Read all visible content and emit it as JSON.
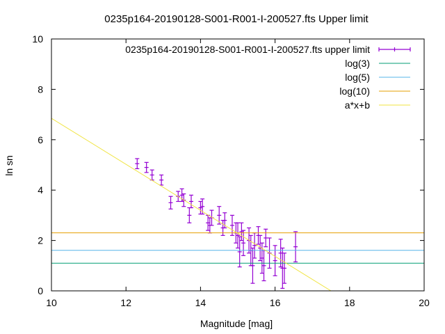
{
  "chart_data": {
    "type": "scatter",
    "title": "0235p164-20190128-S001-R001-I-200527.fts Upper limit",
    "xlabel": "Magnitude [mag]",
    "ylabel": "ln sn",
    "xlim": [
      10,
      20
    ],
    "ylim": [
      0,
      10
    ],
    "xticks": [
      "10",
      "12",
      "14",
      "16",
      "18",
      "20"
    ],
    "yticks": [
      "0",
      "2",
      "4",
      "6",
      "8",
      "10"
    ],
    "grid": false,
    "legend_position": "top-right",
    "series": [
      {
        "name": "0235p164-20190128-S001-R001-I-200527.fts upper limit",
        "kind": "errorbars",
        "color": "#9400d3",
        "points": [
          {
            "x": 12.3,
            "y": 5.05,
            "err": 0.2
          },
          {
            "x": 12.55,
            "y": 4.9,
            "err": 0.2
          },
          {
            "x": 12.7,
            "y": 4.6,
            "err": 0.2
          },
          {
            "x": 12.95,
            "y": 4.4,
            "err": 0.2
          },
          {
            "x": 13.2,
            "y": 3.5,
            "err": 0.25
          },
          {
            "x": 13.4,
            "y": 3.75,
            "err": 0.2
          },
          {
            "x": 13.5,
            "y": 3.8,
            "err": 0.25
          },
          {
            "x": 13.55,
            "y": 3.6,
            "err": 0.25
          },
          {
            "x": 13.7,
            "y": 3.0,
            "err": 0.3
          },
          {
            "x": 13.75,
            "y": 3.55,
            "err": 0.25
          },
          {
            "x": 14.0,
            "y": 3.3,
            "err": 0.25
          },
          {
            "x": 14.05,
            "y": 3.35,
            "err": 0.3
          },
          {
            "x": 14.2,
            "y": 2.7,
            "err": 0.3
          },
          {
            "x": 14.25,
            "y": 2.6,
            "err": 0.3
          },
          {
            "x": 14.3,
            "y": 2.9,
            "err": 0.3
          },
          {
            "x": 14.5,
            "y": 3.0,
            "err": 0.35
          },
          {
            "x": 14.6,
            "y": 2.5,
            "err": 0.3
          },
          {
            "x": 14.65,
            "y": 2.8,
            "err": 0.3
          },
          {
            "x": 14.85,
            "y": 2.6,
            "err": 0.4
          },
          {
            "x": 14.95,
            "y": 2.3,
            "err": 0.4
          },
          {
            "x": 15.0,
            "y": 2.2,
            "err": 0.5
          },
          {
            "x": 15.05,
            "y": 1.55,
            "err": 0.6
          },
          {
            "x": 15.1,
            "y": 2.35,
            "err": 0.35
          },
          {
            "x": 15.15,
            "y": 1.9,
            "err": 0.5
          },
          {
            "x": 15.3,
            "y": 2.0,
            "err": 0.5
          },
          {
            "x": 15.35,
            "y": 1.6,
            "err": 0.6
          },
          {
            "x": 15.4,
            "y": 1.0,
            "err": 0.7
          },
          {
            "x": 15.45,
            "y": 1.8,
            "err": 0.5
          },
          {
            "x": 15.55,
            "y": 2.2,
            "err": 0.35
          },
          {
            "x": 15.6,
            "y": 1.7,
            "err": 0.5
          },
          {
            "x": 15.65,
            "y": 1.3,
            "err": 0.6
          },
          {
            "x": 15.7,
            "y": 1.0,
            "err": 0.6
          },
          {
            "x": 15.75,
            "y": 2.1,
            "err": 0.35
          },
          {
            "x": 15.85,
            "y": 1.5,
            "err": 0.6
          },
          {
            "x": 16.0,
            "y": 1.2,
            "err": 0.6
          },
          {
            "x": 16.15,
            "y": 1.5,
            "err": 0.55
          },
          {
            "x": 16.2,
            "y": 0.9,
            "err": 0.8
          },
          {
            "x": 16.25,
            "y": 0.9,
            "err": 0.6
          },
          {
            "x": 16.55,
            "y": 1.75,
            "err": 0.6
          }
        ]
      },
      {
        "name": "log(3)",
        "kind": "hline",
        "y": 1.0986,
        "color": "#009e73"
      },
      {
        "name": "log(5)",
        "kind": "hline",
        "y": 1.6094,
        "color": "#56b4e9"
      },
      {
        "name": "log(10)",
        "kind": "hline",
        "y": 2.3026,
        "color": "#e69f00"
      },
      {
        "name": "a*x+b",
        "kind": "line",
        "x": [
          10,
          17.5
        ],
        "y": [
          6.85,
          0
        ],
        "color": "#f0e442"
      }
    ]
  }
}
